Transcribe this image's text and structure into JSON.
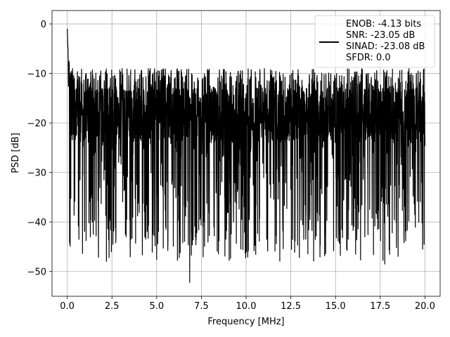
{
  "chart_data": {
    "type": "line",
    "title": "",
    "xlabel": "Frequency [MHz]",
    "ylabel": "PSD [dB]",
    "xlim": [
      -0.85,
      20.85
    ],
    "ylim": [
      -55,
      2.7
    ],
    "xticks": [
      0.0,
      2.5,
      5.0,
      7.5,
      10.0,
      12.5,
      15.0,
      17.5,
      20.0
    ],
    "xtick_labels": [
      "0.0",
      "2.5",
      "5.0",
      "7.5",
      "10.0",
      "12.5",
      "15.0",
      "17.5",
      "20.0"
    ],
    "yticks": [
      0,
      -10,
      -20,
      -30,
      -40,
      -50
    ],
    "ytick_labels": [
      "0",
      "−10",
      "−20",
      "−30",
      "−40",
      "−50"
    ],
    "grid": true,
    "legend_position": "top-right",
    "legend_lines": [
      "ENOB: -4.13 bits",
      "SNR: -23.05 dB",
      "SINAD: -23.08 dB",
      "SFDR: 0.0"
    ],
    "series": [
      {
        "color": "#000000",
        "x_range": [
          0,
          20
        ],
        "peak": {
          "x": 0.02,
          "y": 0
        },
        "typical_band": [
          -30,
          -9
        ],
        "notable_dips": [
          {
            "x": 0.65,
            "y": -43.5
          },
          {
            "x": 1.4,
            "y": -40
          },
          {
            "x": 1.45,
            "y": -42.5
          },
          {
            "x": 2.55,
            "y": -44.5
          },
          {
            "x": 3.25,
            "y": -42.5
          },
          {
            "x": 3.55,
            "y": -43.5
          },
          {
            "x": 5.5,
            "y": -41
          },
          {
            "x": 6.85,
            "y": -52.2
          },
          {
            "x": 8.2,
            "y": -41
          },
          {
            "x": 9.3,
            "y": -40
          },
          {
            "x": 11.15,
            "y": -43.5
          },
          {
            "x": 15.35,
            "y": -41.5
          },
          {
            "x": 17.35,
            "y": -41.5
          },
          {
            "x": 17.75,
            "y": -48.5
          },
          {
            "x": 19.95,
            "y": -44.5
          }
        ]
      }
    ]
  }
}
